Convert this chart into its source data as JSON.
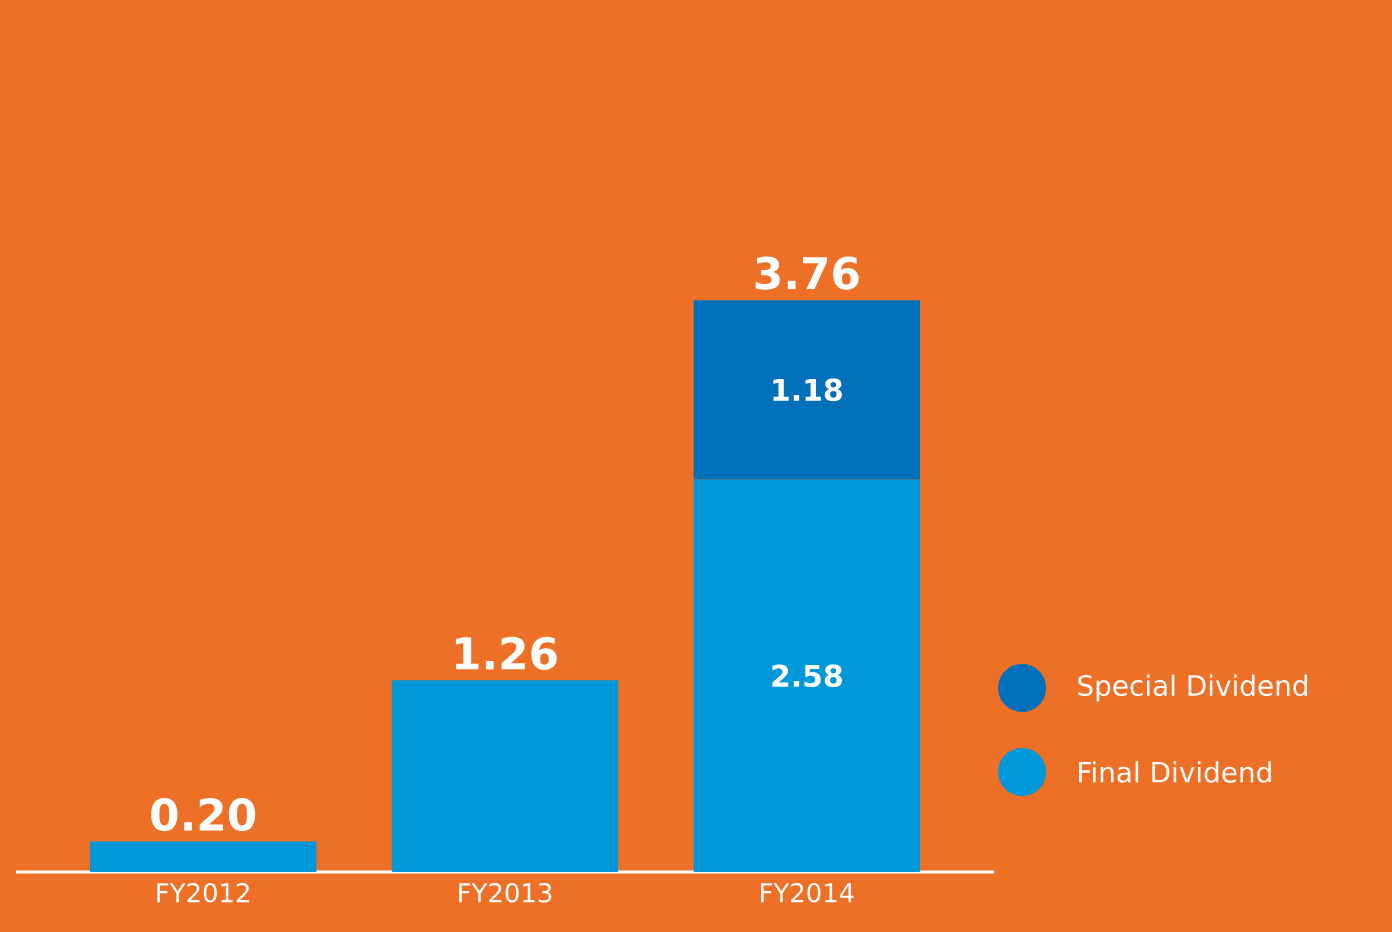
{
  "chart_data": {
    "type": "bar",
    "stacked": true,
    "categories": [
      "FY2012",
      "FY2013",
      "FY2014"
    ],
    "series": [
      {
        "name": "Final Dividend",
        "color": "#0098d8",
        "values": [
          0.2,
          1.26,
          2.58
        ],
        "value_labels": [
          null,
          null,
          "2.58"
        ]
      },
      {
        "name": "Special Dividend",
        "color": "#0070bb",
        "values": [
          null,
          null,
          1.18
        ],
        "value_labels": [
          null,
          null,
          "1.18"
        ]
      }
    ],
    "totals": [
      "0.20",
      "1.26",
      "3.76"
    ],
    "legend": "right"
  }
}
